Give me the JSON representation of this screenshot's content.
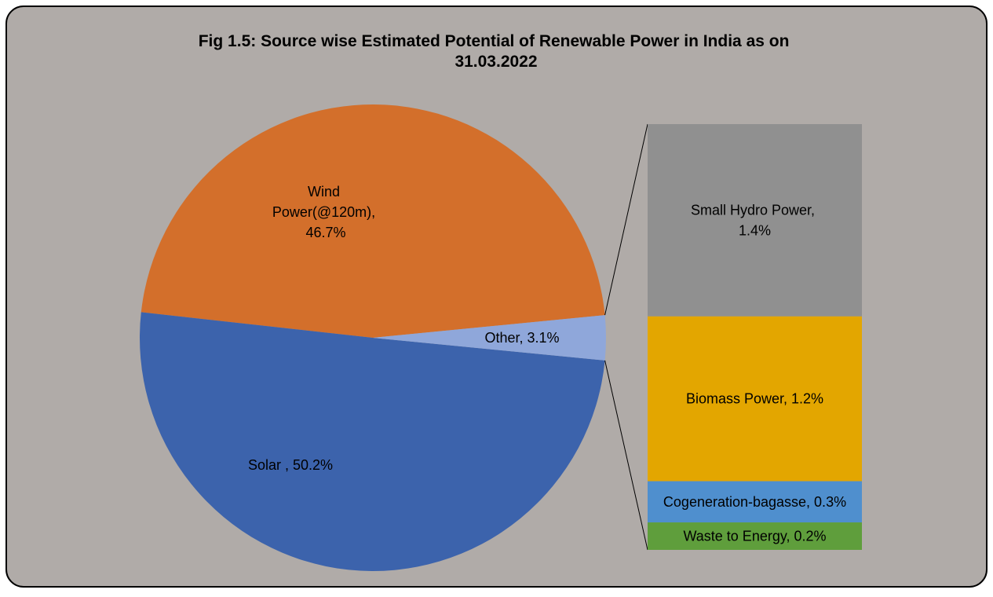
{
  "chart_data": {
    "type": "bar-of-pie",
    "title": "Fig 1.5: Source wise Estimated Potential of Renewable Power in India as on 31.03.2022",
    "pie": {
      "values": [
        46.7,
        50.2,
        3.1
      ],
      "value_labels": [
        "Wind Power(@120m), 46.7%",
        "Solar , 50.2%",
        "Other, 3.1%"
      ],
      "colors": [
        "#d36f2b",
        "#3c63ac",
        "#8fa7da"
      ]
    },
    "bar": {
      "values": [
        1.4,
        1.2,
        0.3,
        0.2
      ],
      "value_labels": [
        "Small Hydro Power, 1.4%",
        "Biomass Power, 1.2%",
        "Cogeneration-bagasse, 0.3%",
        "Waste to Energy, 0.2%"
      ],
      "colors": [
        "#909090",
        "#e3a600",
        "#4f8fce",
        "#5f9e3c"
      ]
    }
  }
}
